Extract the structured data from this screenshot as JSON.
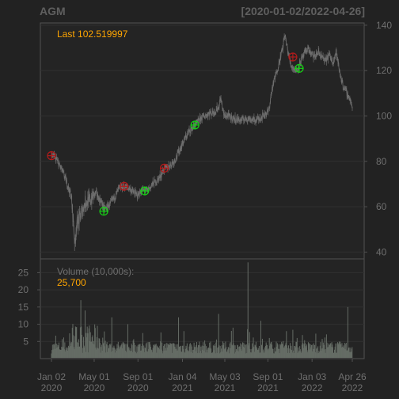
{
  "chart_data": {
    "type": "line",
    "symbol": "AGM",
    "date_range_label": "[2020-01-02/2022-04-26]",
    "last_label": "Last 102.519997",
    "volume_label": "Volume (10,000s):",
    "volume_last": "25,700",
    "price_axis": {
      "ylim": [
        37,
        141
      ],
      "ticks": [
        40,
        60,
        80,
        100,
        120,
        140
      ]
    },
    "volume_axis": {
      "ylim": [
        0,
        29
      ],
      "ticks": [
        5,
        10,
        15,
        20,
        25
      ]
    },
    "x_ticks": [
      {
        "line1": "Jan 02",
        "line2": "2020",
        "day": 0
      },
      {
        "line1": "May 01",
        "line2": "2020",
        "day": 120
      },
      {
        "line1": "Sep 01",
        "line2": "2020",
        "day": 243
      },
      {
        "line1": "Jan 04",
        "line2": "2021",
        "day": 368
      },
      {
        "line1": "May 03",
        "line2": "2021",
        "day": 487
      },
      {
        "line1": "Sep 01",
        "line2": "2021",
        "day": 608
      },
      {
        "line1": "Jan 03",
        "line2": "2022",
        "day": 732
      },
      {
        "line1": "Apr 26",
        "line2": "2022",
        "day": 845
      }
    ],
    "price_series": [
      [
        0,
        82.5
      ],
      [
        10,
        82
      ],
      [
        20,
        79
      ],
      [
        30,
        76
      ],
      [
        40,
        72
      ],
      [
        55,
        65
      ],
      [
        62,
        53
      ],
      [
        66,
        43
      ],
      [
        70,
        52
      ],
      [
        80,
        55
      ],
      [
        95,
        62
      ],
      [
        110,
        63
      ],
      [
        125,
        66
      ],
      [
        140,
        62
      ],
      [
        150,
        59
      ],
      [
        165,
        61
      ],
      [
        180,
        65
      ],
      [
        190,
        68
      ],
      [
        205,
        69
      ],
      [
        220,
        68
      ],
      [
        240,
        65
      ],
      [
        255,
        67
      ],
      [
        270,
        67
      ],
      [
        285,
        70
      ],
      [
        300,
        72
      ],
      [
        315,
        76
      ],
      [
        330,
        78
      ],
      [
        345,
        80
      ],
      [
        360,
        85
      ],
      [
        375,
        90
      ],
      [
        390,
        94
      ],
      [
        405,
        96
      ],
      [
        420,
        99
      ],
      [
        440,
        101
      ],
      [
        460,
        102
      ],
      [
        470,
        104
      ],
      [
        475,
        108
      ],
      [
        480,
        104
      ],
      [
        485,
        100
      ],
      [
        495,
        100
      ],
      [
        510,
        99
      ],
      [
        530,
        98
      ],
      [
        550,
        99
      ],
      [
        570,
        98
      ],
      [
        585,
        99
      ],
      [
        600,
        101
      ],
      [
        610,
        102
      ],
      [
        620,
        112
      ],
      [
        630,
        118
      ],
      [
        640,
        124
      ],
      [
        650,
        130
      ],
      [
        655,
        136
      ],
      [
        660,
        132
      ],
      [
        665,
        128
      ],
      [
        670,
        124
      ],
      [
        675,
        122
      ],
      [
        680,
        121
      ],
      [
        690,
        120
      ],
      [
        700,
        124
      ],
      [
        710,
        127
      ],
      [
        720,
        130
      ],
      [
        730,
        127
      ],
      [
        740,
        126
      ],
      [
        750,
        128
      ],
      [
        760,
        126
      ],
      [
        770,
        124
      ],
      [
        780,
        127
      ],
      [
        790,
        124
      ],
      [
        800,
        128
      ],
      [
        810,
        119
      ],
      [
        820,
        113
      ],
      [
        830,
        110
      ],
      [
        837,
        108
      ],
      [
        842,
        106
      ],
      [
        845,
        102.52
      ]
    ],
    "buy_markers": [
      [
        147,
        58
      ],
      [
        262,
        67
      ],
      [
        403,
        96
      ],
      [
        696,
        121
      ]
    ],
    "sell_markers": [
      [
        0,
        82.5
      ],
      [
        204,
        69
      ],
      [
        317,
        77
      ],
      [
        678,
        126
      ]
    ],
    "volume_spikes": [
      [
        83,
        17
      ],
      [
        95,
        14
      ],
      [
        170,
        12
      ],
      [
        215,
        10
      ],
      [
        310,
        11
      ],
      [
        357,
        12
      ],
      [
        372,
        8
      ],
      [
        470,
        13
      ],
      [
        493,
        20
      ],
      [
        510,
        9
      ],
      [
        552,
        28
      ],
      [
        588,
        11
      ],
      [
        612,
        6
      ],
      [
        660,
        8
      ],
      [
        690,
        6
      ],
      [
        775,
        6
      ],
      [
        833,
        15
      ]
    ],
    "colors": {
      "background": "#222222",
      "grid": "#303030",
      "frame": "#525252",
      "price_line": "#666666",
      "volume_bar": "#656c65",
      "accent": "#ffa500",
      "buy": "#15d414",
      "sell": "#b21b1b",
      "muted_text": "#6f6f6f"
    }
  }
}
